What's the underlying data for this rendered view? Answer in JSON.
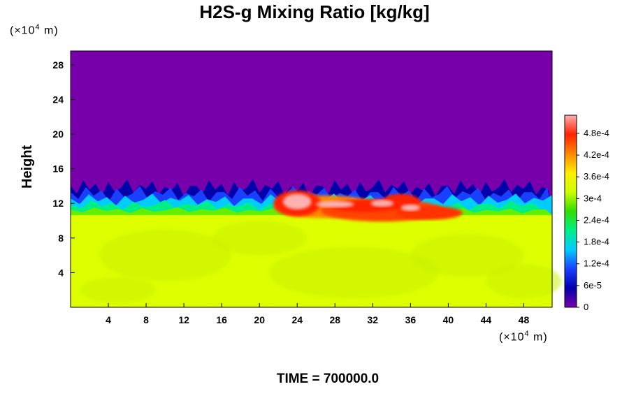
{
  "chart_data": {
    "type": "heatmap",
    "title": "H2S-g Mixing Ratio [kg/kg]",
    "ylabel": "Height",
    "xlabel": "",
    "x_unit": "(×10⁴ m)",
    "y_unit": "(×10⁴ m)",
    "x_ticks": [
      4,
      8,
      12,
      16,
      20,
      24,
      28,
      32,
      36,
      40,
      44,
      48
    ],
    "y_ticks": [
      4,
      8,
      12,
      16,
      20,
      24,
      28
    ],
    "xlim": [
      0,
      51
    ],
    "ylim": [
      0,
      29.6
    ],
    "colorbar": {
      "ticks": [
        "0",
        "6e-5",
        "1.2e-4",
        "1.8e-4",
        "2.4e-4",
        "3e-4",
        "3.6e-4",
        "4.2e-4",
        "4.8e-4"
      ],
      "tick_values": [
        0,
        6e-05,
        0.00012,
        0.00018,
        0.00024,
        0.0003,
        0.00036,
        0.00042,
        0.00048
      ],
      "range": [
        0,
        0.00053
      ]
    },
    "field_summary": {
      "upper_region": {
        "y_range": [
          13.5,
          29.6
        ],
        "value": 0
      },
      "lower_region": {
        "y_range": [
          0,
          10.8
        ],
        "value": 0.00034
      },
      "transition_layer": {
        "y_range": [
          10.8,
          15
        ],
        "value_range": [
          6e-05,
          0.00024
        ]
      },
      "high_plume": {
        "x_range": [
          22,
          41
        ],
        "y_range": [
          10.5,
          13.5
        ],
        "value_range": [
          0.00042,
          0.00053
        ]
      }
    },
    "colors": {
      "zero": "#7700aa",
      "background_lower": "#ddff00",
      "max": "#ffb0b0"
    }
  },
  "footer": {
    "time_label": "TIME = 700000.0"
  }
}
